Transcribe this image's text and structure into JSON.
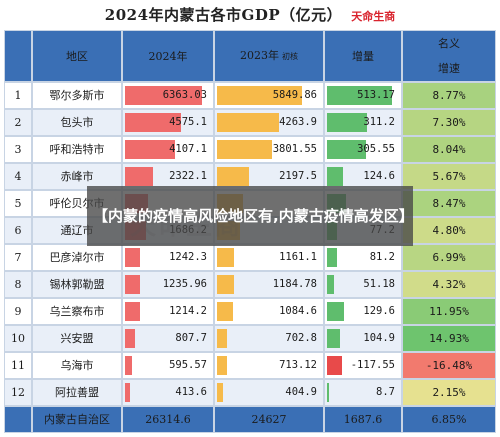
{
  "title": "2024年内蒙古各市GDP（亿元）",
  "brand": "天命生商",
  "banner": "【内蒙的疫情高风险地区有,内蒙古疫情高发区】",
  "watermark": "天命生商",
  "headers": {
    "region": "地区",
    "y2024": "2024年",
    "y2023": "2023年",
    "y2023_note": "初核",
    "increase": "增量",
    "rate_line1": "名义",
    "rate_line2": "增速"
  },
  "colors": {
    "header_bg": "#3a6fb5",
    "bar_2024": "#ef6b6b",
    "bar_2023": "#f6ba4a",
    "bar_increase": "#5fbd6d",
    "bar_negative": "#e84a4a"
  },
  "chart_data": {
    "type": "table",
    "columns": [
      "地区",
      "2024年",
      "2023年",
      "增量",
      "名义增速"
    ],
    "rows": [
      {
        "rank": "1",
        "region": "鄂尔多斯市",
        "gdp2024": "6363.03",
        "gdp2023": "5849.86",
        "increase": "513.17",
        "rate": "8.77%",
        "v2024": 6363.03,
        "v2023": 5849.86,
        "vinc": 513.17,
        "vrate": 8.77
      },
      {
        "rank": "2",
        "region": "包头市",
        "gdp2024": "4575.1",
        "gdp2023": "4263.9",
        "increase": "311.2",
        "rate": "7.30%",
        "v2024": 4575.1,
        "v2023": 4263.9,
        "vinc": 311.2,
        "vrate": 7.3
      },
      {
        "rank": "3",
        "region": "呼和浩特市",
        "gdp2024": "4107.1",
        "gdp2023": "3801.55",
        "increase": "305.55",
        "rate": "8.04%",
        "v2024": 4107.1,
        "v2023": 3801.55,
        "vinc": 305.55,
        "vrate": 8.04
      },
      {
        "rank": "4",
        "region": "赤峰市",
        "gdp2024": "2322.1",
        "gdp2023": "2197.5",
        "increase": "124.6",
        "rate": "5.67%",
        "v2024": 2322.1,
        "v2023": 2197.5,
        "vinc": 124.6,
        "vrate": 5.67
      },
      {
        "rank": "5",
        "region": "呼伦贝尔市",
        "gdp2024": "",
        "gdp2023": "",
        "increase": "",
        "rate": "8.47%",
        "v2024": 1900,
        "v2023": 1750,
        "vinc": 150,
        "vrate": 8.47
      },
      {
        "rank": "6",
        "region": "通辽市",
        "gdp2024": "1686.2",
        "gdp2023": "",
        "increase": "77.2",
        "rate": "4.80%",
        "v2024": 1686.2,
        "v2023": 1609,
        "vinc": 77.2,
        "vrate": 4.8
      },
      {
        "rank": "7",
        "region": "巴彦淖尔市",
        "gdp2024": "1242.3",
        "gdp2023": "1161.1",
        "increase": "81.2",
        "rate": "6.99%",
        "v2024": 1242.3,
        "v2023": 1161.1,
        "vinc": 81.2,
        "vrate": 6.99
      },
      {
        "rank": "8",
        "region": "锡林郭勒盟",
        "gdp2024": "1235.96",
        "gdp2023": "1184.78",
        "increase": "51.18",
        "rate": "4.32%",
        "v2024": 1235.96,
        "v2023": 1184.78,
        "vinc": 51.18,
        "vrate": 4.32
      },
      {
        "rank": "9",
        "region": "乌兰察布市",
        "gdp2024": "1214.2",
        "gdp2023": "1084.6",
        "increase": "129.6",
        "rate": "11.95%",
        "v2024": 1214.2,
        "v2023": 1084.6,
        "vinc": 129.6,
        "vrate": 11.95
      },
      {
        "rank": "10",
        "region": "兴安盟",
        "gdp2024": "807.7",
        "gdp2023": "702.8",
        "increase": "104.9",
        "rate": "14.93%",
        "v2024": 807.7,
        "v2023": 702.8,
        "vinc": 104.9,
        "vrate": 14.93
      },
      {
        "rank": "11",
        "region": "乌海市",
        "gdp2024": "595.57",
        "gdp2023": "713.12",
        "increase": "-117.55",
        "rate": "-16.48%",
        "v2024": 595.57,
        "v2023": 713.12,
        "vinc": -117.55,
        "vrate": -16.48
      },
      {
        "rank": "12",
        "region": "阿拉善盟",
        "gdp2024": "413.6",
        "gdp2023": "404.9",
        "increase": "8.7",
        "rate": "2.15%",
        "v2024": 413.6,
        "v2023": 404.9,
        "vinc": 8.7,
        "vrate": 2.15
      }
    ],
    "total": {
      "region": "内蒙古自治区",
      "gdp2024": "26314.6",
      "gdp2023": "24627",
      "increase": "1687.6",
      "rate": "6.85%"
    }
  }
}
